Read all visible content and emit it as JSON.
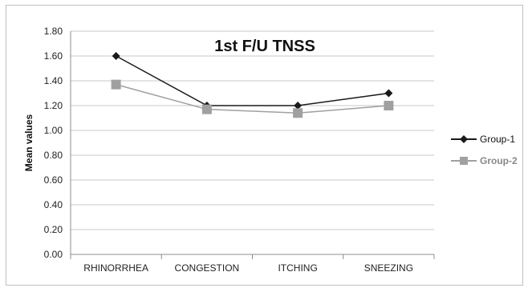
{
  "chart_data": {
    "type": "line",
    "title": "1st F/U TNSS",
    "xlabel": "",
    "ylabel": "Mean values",
    "categories": [
      "RHINORRHEA",
      "CONGESTION",
      "ITCHING",
      "SNEEZING"
    ],
    "ylim": [
      0,
      1.8
    ],
    "ytick_labels": [
      "0.00",
      "0.20",
      "0.40",
      "0.60",
      "0.80",
      "1.00",
      "1.20",
      "1.40",
      "1.60",
      "1.80"
    ],
    "grid": true,
    "legend_position": "right",
    "series": [
      {
        "name": "Group-1",
        "values": [
          1.6,
          1.2,
          1.2,
          1.3
        ],
        "color": "#1a1a1a",
        "marker": "diamond"
      },
      {
        "name": "Group-2",
        "values": [
          1.37,
          1.17,
          1.14,
          1.2
        ],
        "color": "#a0a0a0",
        "marker": "square"
      }
    ]
  }
}
